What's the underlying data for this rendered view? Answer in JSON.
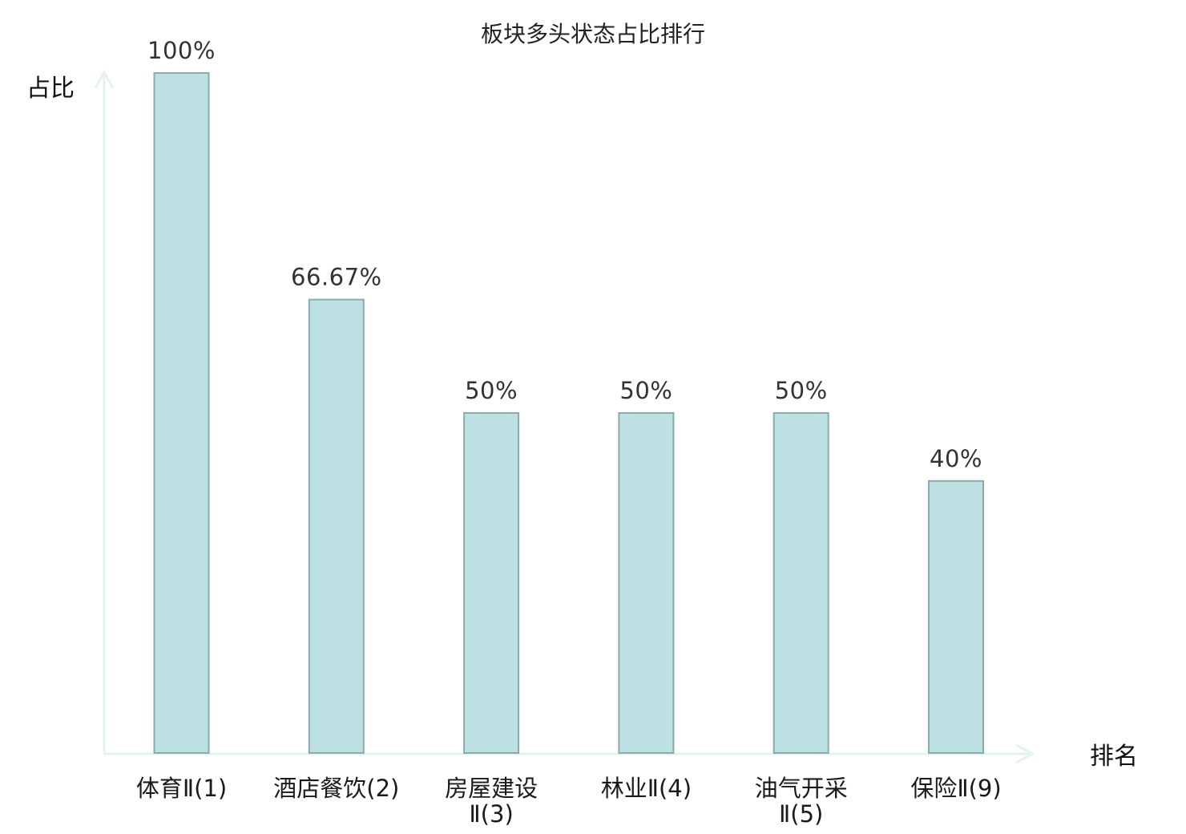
{
  "chart_data": {
    "type": "bar",
    "title": "板块多头状态占比排行",
    "ylabel": "占比",
    "xlabel": "排名",
    "categories": [
      {
        "label": "体育Ⅱ(1)",
        "lines": [
          "体育Ⅱ(1)"
        ],
        "highlight": false
      },
      {
        "label": "酒店餐饮(2)",
        "lines": [
          "酒店餐饮(2)"
        ],
        "highlight": false
      },
      {
        "label": "房屋建设Ⅱ(3)",
        "lines": [
          "房屋建设",
          "Ⅱ(3)"
        ],
        "highlight": false
      },
      {
        "label": "林业Ⅱ(4)",
        "lines": [
          "林业Ⅱ(4)"
        ],
        "highlight": false
      },
      {
        "label": "油气开采Ⅱ(5)",
        "lines": [
          "油气开采",
          "Ⅱ(5)"
        ],
        "highlight": false
      },
      {
        "label": "保险Ⅱ(9)",
        "lines": [
          "保险Ⅱ(9)"
        ],
        "highlight": true
      }
    ],
    "values": [
      100,
      66.67,
      50,
      50,
      50,
      40
    ],
    "value_labels": [
      "100%",
      "66.67%",
      "50%",
      "50%",
      "50%",
      "40%"
    ],
    "ylim": [
      0,
      100
    ],
    "grid": false,
    "legend": "none",
    "colors": {
      "bar_fill": "#bde0e3",
      "bar_stroke": "#8aabac",
      "axis": "#e3f3f1",
      "highlight_text": "#e01010",
      "text": "#1a1a1a"
    }
  }
}
